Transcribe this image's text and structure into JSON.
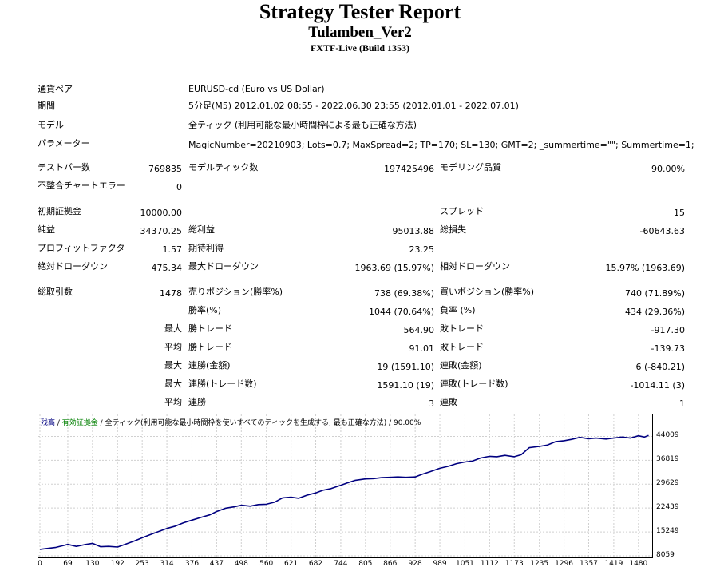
{
  "header": {
    "title": "Strategy Tester Report",
    "ea_name": "Tulamben_Ver2",
    "server": "FXTF-Live (Build 1353)"
  },
  "info": {
    "pair_label": "通貨ペア",
    "pair_value": "EURUSD-cd (Euro vs US Dollar)",
    "period_label": "期間",
    "period_value": "5分足(M5) 2012.01.02 08:55 - 2022.06.30 23:55 (2012.01.01 - 2022.07.01)",
    "model_label": "モデル",
    "model_value": "全ティック (利用可能な最小時間枠による最も正確な方法)",
    "params_label": "パラメーター",
    "params_value": "MagicNumber=20210903; Lots=0.7; MaxSpread=2; TP=170; SL=130; GMT=2; _summertime=\"\"; Summertime=1;"
  },
  "stats": {
    "bars_label": "テストバー数",
    "bars_value": "769835",
    "ticks_label": "モデルティック数",
    "ticks_value": "197425496",
    "quality_label": "モデリング品質",
    "quality_value": "90.00%",
    "mismatch_label": "不整合チャートエラー",
    "mismatch_value": "0",
    "deposit_label": "初期証拠金",
    "deposit_value": "10000.00",
    "spread_label": "スプレッド",
    "spread_value": "15",
    "net_label": "純益",
    "net_value": "34370.25",
    "gross_profit_label": "総利益",
    "gross_profit_value": "95013.88",
    "gross_loss_label": "総損失",
    "gross_loss_value": "-60643.63",
    "pf_label": "プロフィットファクタ",
    "pf_value": "1.57",
    "expected_label": "期待利得",
    "expected_value": "23.25",
    "abs_dd_label": "絶対ドローダウン",
    "abs_dd_value": "475.34",
    "max_dd_label": "最大ドローダウン",
    "max_dd_value": "1963.69 (15.97%)",
    "rel_dd_label": "相対ドローダウン",
    "rel_dd_value": "15.97% (1963.69)",
    "total_trades_label": "総取引数",
    "total_trades_value": "1478",
    "short_label": "売りポジション(勝率%)",
    "short_value": "738 (69.38%)",
    "long_label": "買いポジション(勝率%)",
    "long_value": "740 (71.89%)",
    "win_rate_label": "勝率(%)",
    "win_rate_value": "1044 (70.64%)",
    "loss_rate_label": "負率 (%)",
    "loss_rate_value": "434 (29.36%)",
    "max_label": "最大",
    "avg_label": "平均",
    "largest_win_label": "勝トレード",
    "largest_win_value": "564.90",
    "largest_loss_label": "敗トレード",
    "largest_loss_value": "-917.30",
    "avg_win_label": "勝トレード",
    "avg_win_value": "91.01",
    "avg_loss_label": "敗トレード",
    "avg_loss_value": "-139.73",
    "max_consec_wins_label": "連勝(金額)",
    "max_consec_wins_value": "19 (1591.10)",
    "max_consec_losses_label": "連敗(金額)",
    "max_consec_losses_value": "6 (-840.21)",
    "max_consec_profit_label": "連勝(トレード数)",
    "max_consec_profit_value": "1591.10 (19)",
    "max_consec_loss_label": "連敗(トレード数)",
    "max_consec_loss_value": "-1014.11 (3)",
    "avg_consec_wins_label": "連勝",
    "avg_consec_wins_value": "3",
    "avg_consec_losses_label": "連敗",
    "avg_consec_losses_value": "1"
  },
  "chart_legend": {
    "balance": "残高",
    "sep1": " / ",
    "equity": "有効証拠金",
    "sep2": " / ",
    "rest": "全ティック(利用可能な最小時間枠を使いすべてのティックを生成する, 最も正確な方法) / 90.00%",
    "balance_color": "#000080",
    "equity_color": "#008000"
  },
  "chart_data": {
    "type": "line",
    "xlim": [
      0,
      1510
    ],
    "ylim": [
      8059,
      45800
    ],
    "x_ticks": [
      0,
      69,
      130,
      192,
      253,
      314,
      376,
      437,
      498,
      560,
      621,
      682,
      744,
      805,
      866,
      928,
      989,
      1051,
      1112,
      1173,
      1235,
      1296,
      1357,
      1419,
      1480
    ],
    "y_ticks": [
      8059,
      15249,
      22439,
      29629,
      36819,
      44009
    ],
    "grid": true,
    "line_color": "#000080",
    "series": [
      {
        "x": [
          0,
          20,
          40,
          60,
          69,
          90,
          110,
          130,
          150,
          170,
          192,
          215,
          235,
          253,
          270,
          290,
          314,
          335,
          355,
          376,
          400,
          420,
          437,
          460,
          480,
          498,
          520,
          540,
          560,
          580,
          600,
          621,
          640,
          660,
          682,
          700,
          720,
          744,
          760,
          780,
          805,
          825,
          845,
          866,
          885,
          905,
          928,
          945,
          965,
          989,
          1010,
          1030,
          1051,
          1070,
          1090,
          1112,
          1130,
          1150,
          1173,
          1190,
          1210,
          1235,
          1255,
          1275,
          1296,
          1315,
          1335,
          1357,
          1375,
          1400,
          1419,
          1440,
          1460,
          1480,
          1495,
          1505
        ],
        "values": [
          10000,
          10300,
          10600,
          11200,
          11500,
          10900,
          11400,
          11800,
          10800,
          10900,
          10700,
          11700,
          12600,
          13500,
          14300,
          15200,
          16300,
          17000,
          18000,
          18800,
          19700,
          20400,
          21400,
          22400,
          22800,
          23300,
          23000,
          23500,
          23600,
          24200,
          25500,
          25700,
          25400,
          26300,
          27000,
          27800,
          28300,
          29300,
          30000,
          30800,
          31200,
          31300,
          31600,
          31700,
          31800,
          31700,
          31800,
          32600,
          33400,
          34400,
          35000,
          35800,
          36300,
          36600,
          37500,
          38000,
          37900,
          38300,
          37900,
          38500,
          40600,
          41000,
          41400,
          42400,
          42700,
          43100,
          43700,
          43300,
          43500,
          43200,
          43500,
          43800,
          43500,
          44200,
          43800,
          44300
        ]
      }
    ]
  }
}
